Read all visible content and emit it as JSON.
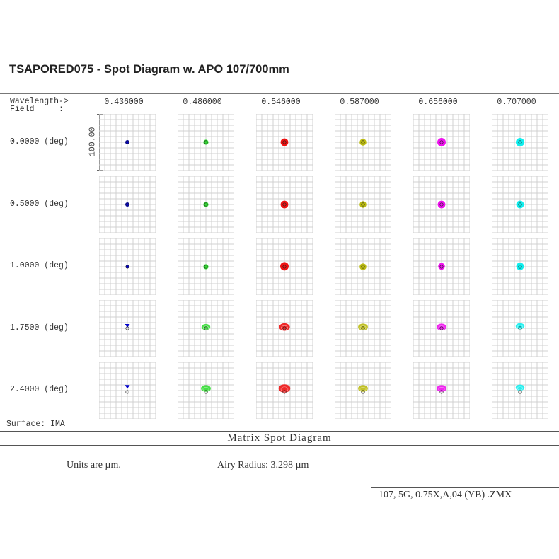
{
  "title": "TSAPORED075 - Spot Diagram w. APO 107/700mm",
  "header": {
    "wavelength_label": "Wavelength->",
    "field_label": "Field     :"
  },
  "wavelengths": [
    "0.436000",
    "0.486000",
    "0.546000",
    "0.587000",
    "0.656000",
    "0.707000"
  ],
  "fields": [
    "0.0000 (deg)",
    "0.5000 (deg)",
    "1.0000 (deg)",
    "1.7500 (deg)",
    "2.4000 (deg)"
  ],
  "scale_label": "100.00",
  "surface_label": "Surface: IMA",
  "footer": {
    "title": "Matrix Spot Diagram",
    "units": "Units are µm.",
    "airy": "Airy Radius: 3.298 µm",
    "file": "107, 5G, 0.75X,A,04 (YB) .ZMX"
  },
  "colors": {
    "wl_0": "#0000cc",
    "wl_1": "#33dd33",
    "wl_2": "#ee1111",
    "wl_3": "#bbbb11",
    "wl_4": "#ee11ee",
    "wl_5": "#11eeee",
    "grid": "#d0d0d0"
  },
  "chart_data": {
    "type": "scatter",
    "title": "Matrix Spot Diagram",
    "xlabel": "Wavelength (µm)",
    "ylabel": "Field (deg)",
    "categories": [
      "0.436000",
      "0.486000",
      "0.546000",
      "0.587000",
      "0.656000",
      "0.707000"
    ],
    "fields_deg": [
      0.0,
      0.5,
      1.0,
      1.75,
      2.4
    ],
    "box_size_um": 100.0,
    "grid_divisions": 10,
    "airy_radius_um": 3.298,
    "approx_spot_radius_um": [
      [
        5,
        6,
        9,
        8,
        10,
        10
      ],
      [
        5,
        6,
        9,
        8,
        9,
        9
      ],
      [
        4,
        6,
        10,
        8,
        8,
        9
      ],
      [
        4,
        9,
        11,
        10,
        10,
        9
      ],
      [
        4,
        10,
        12,
        10,
        10,
        9
      ]
    ],
    "spot_y_offset_um": [
      [
        0,
        0,
        0,
        0,
        0,
        0
      ],
      [
        0,
        0,
        0,
        0,
        0,
        0
      ],
      [
        0,
        0,
        -1,
        0,
        -1,
        -1
      ],
      [
        -5,
        -3,
        -3,
        -3,
        -3,
        -5
      ],
      [
        -8,
        -5,
        -5,
        -5,
        -5,
        -7
      ]
    ]
  }
}
